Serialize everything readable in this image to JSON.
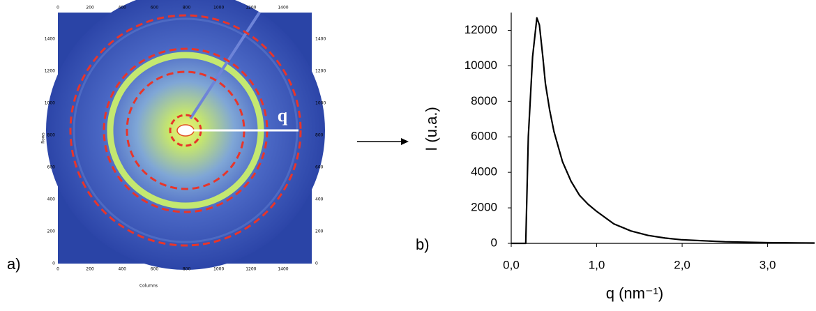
{
  "panel_a": {
    "label": "a)",
    "x_axis_label": "Columns",
    "y_axis_label": "Rows",
    "ticks": [
      0,
      200,
      400,
      600,
      800,
      1000,
      1200,
      1400
    ],
    "q_label": "q"
  },
  "panel_b": {
    "label": "b)"
  },
  "chart_data": {
    "type": "line",
    "xlabel": "q (nm⁻¹)",
    "ylabel": "I (u.a.)",
    "x": [
      0,
      0.15,
      0.17,
      0.2,
      0.25,
      0.3,
      0.33,
      0.37,
      0.4,
      0.45,
      0.5,
      0.6,
      0.7,
      0.8,
      0.9,
      1.0,
      1.2,
      1.4,
      1.6,
      1.8,
      2.0,
      2.5,
      3.0,
      3.55
    ],
    "series": [
      {
        "color": "#000000",
        "values": [
          0,
          0,
          0,
          6000,
          10500,
          12700,
          12300,
          10500,
          9000,
          7500,
          6300,
          4600,
          3500,
          2700,
          2200,
          1800,
          1100,
          700,
          450,
          300,
          200,
          90,
          40,
          20
        ]
      }
    ],
    "xlim": [
      0,
      3.55
    ],
    "ylim": [
      0,
      13000
    ],
    "xticks": [
      {
        "value": 0,
        "label": "0,0"
      },
      {
        "value": 1,
        "label": "1,0"
      },
      {
        "value": 2,
        "label": "2,0"
      },
      {
        "value": 3,
        "label": "3,0"
      }
    ],
    "yticks": [
      0,
      2000,
      4000,
      6000,
      8000,
      10000,
      12000
    ],
    "grid": false
  }
}
